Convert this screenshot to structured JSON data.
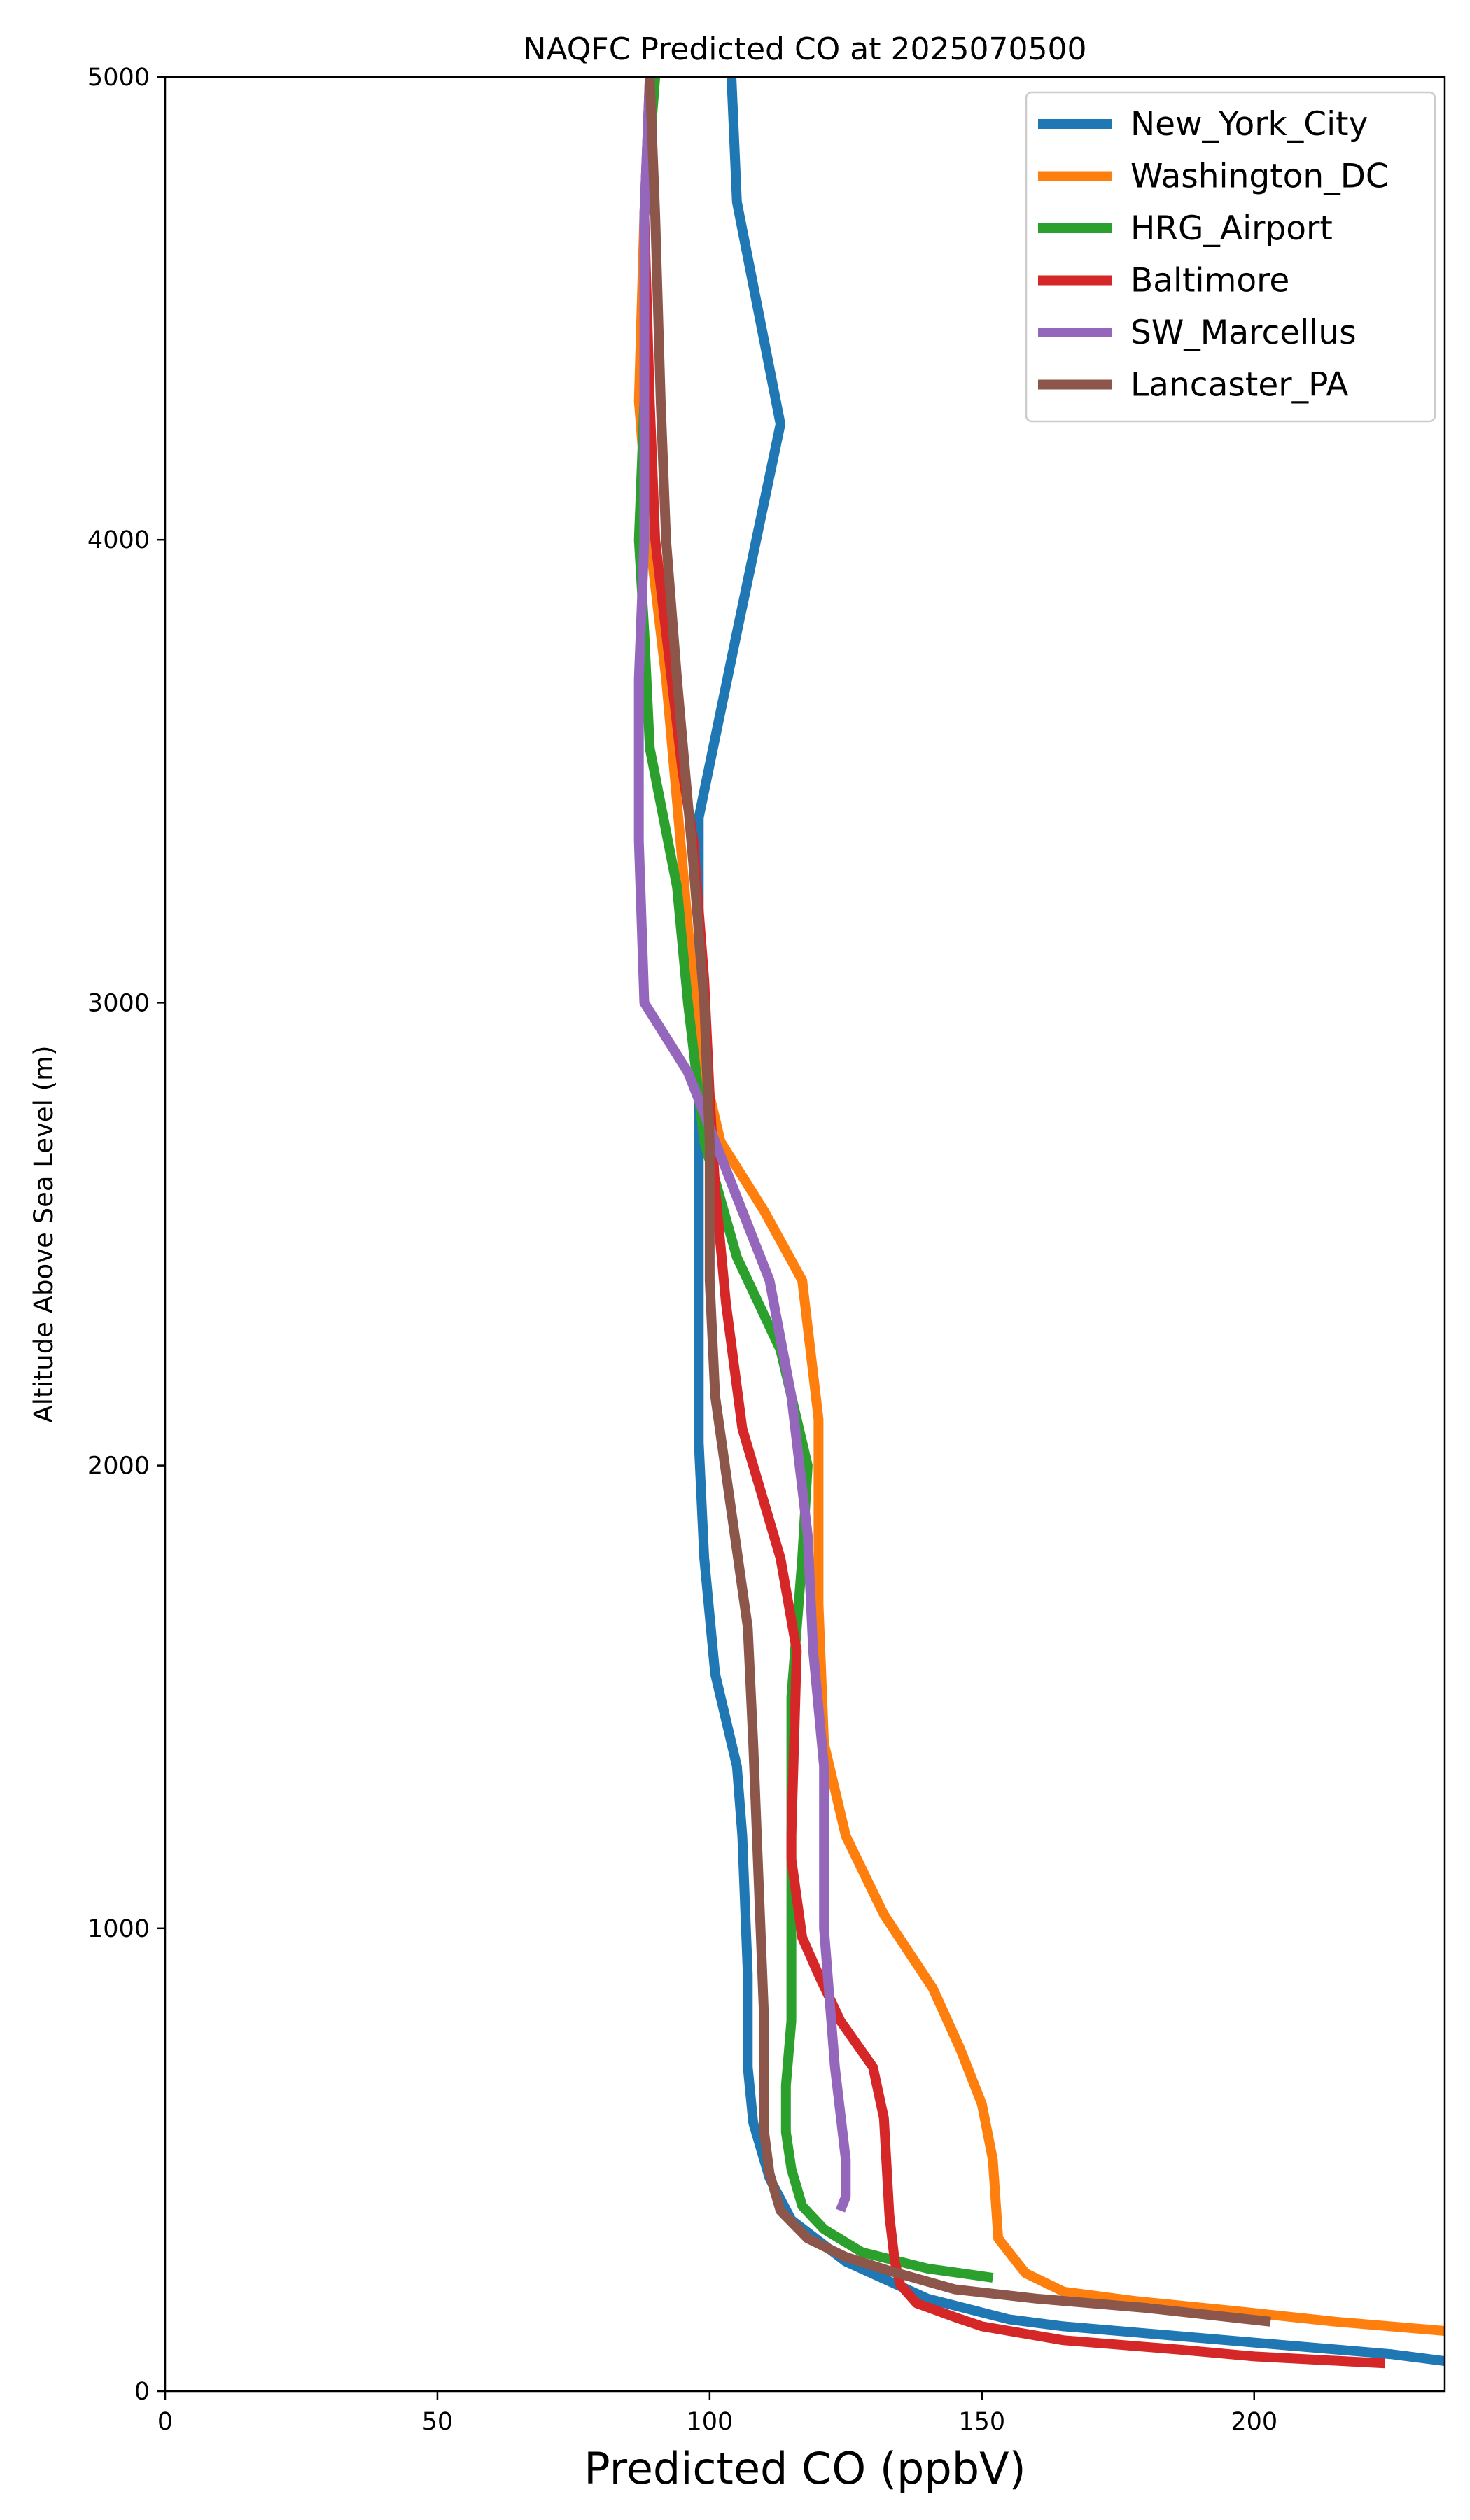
{
  "chart_data": {
    "type": "line",
    "title": "NAQFC Predicted CO at 2025070500",
    "xlabel": "Predicted CO (ppbV)",
    "ylabel": "Altitude Above Sea Level (m)",
    "xlim": [
      0,
      235
    ],
    "ylim": [
      0,
      5000
    ],
    "xticks": [
      0,
      50,
      100,
      150,
      200
    ],
    "yticks": [
      0,
      1000,
      2000,
      3000,
      4000,
      5000
    ],
    "grid": false,
    "legend_position": "top-right",
    "series": [
      {
        "name": "New_York_City",
        "color": "#1f77b4",
        "points": [
          [
            235,
            65
          ],
          [
            225,
            80
          ],
          [
            200,
            105
          ],
          [
            180,
            125
          ],
          [
            165,
            140
          ],
          [
            155,
            155
          ],
          [
            140,
            200
          ],
          [
            125,
            280
          ],
          [
            115,
            370
          ],
          [
            111,
            460
          ],
          [
            108,
            580
          ],
          [
            107,
            700
          ],
          [
            107,
            900
          ],
          [
            106,
            1200
          ],
          [
            105,
            1350
          ],
          [
            101,
            1550
          ],
          [
            99,
            1800
          ],
          [
            98,
            2050
          ],
          [
            98,
            2400
          ],
          [
            98,
            2800
          ],
          [
            98,
            3100
          ],
          [
            98,
            3400
          ],
          [
            105,
            3800
          ],
          [
            113,
            4250
          ],
          [
            105,
            4730
          ],
          [
            104,
            5000
          ]
        ]
      },
      {
        "name": "Washington_DC",
        "color": "#ff7f0e",
        "points": [
          [
            235,
            130
          ],
          [
            215,
            150
          ],
          [
            195,
            175
          ],
          [
            178,
            195
          ],
          [
            165,
            215
          ],
          [
            158,
            255
          ],
          [
            153,
            330
          ],
          [
            152,
            500
          ],
          [
            150,
            620
          ],
          [
            146,
            740
          ],
          [
            141,
            870
          ],
          [
            132,
            1030
          ],
          [
            125,
            1200
          ],
          [
            121,
            1400
          ],
          [
            120,
            1700
          ],
          [
            120,
            2100
          ],
          [
            117,
            2400
          ],
          [
            110,
            2550
          ],
          [
            102,
            2700
          ],
          [
            98,
            2900
          ],
          [
            95,
            3300
          ],
          [
            92,
            3700
          ],
          [
            89,
            4000
          ],
          [
            87,
            4300
          ],
          [
            88,
            4700
          ],
          [
            90,
            5000
          ]
        ]
      },
      {
        "name": "HRG_Airport",
        "color": "#2ca02c",
        "points": [
          [
            152,
            245
          ],
          [
            140,
            265
          ],
          [
            128,
            300
          ],
          [
            121,
            350
          ],
          [
            117,
            400
          ],
          [
            115,
            480
          ],
          [
            114,
            560
          ],
          [
            114,
            660
          ],
          [
            115,
            800
          ],
          [
            115,
            1000
          ],
          [
            115,
            1200
          ],
          [
            115,
            1500
          ],
          [
            117,
            1800
          ],
          [
            118,
            2000
          ],
          [
            113,
            2250
          ],
          [
            105,
            2450
          ],
          [
            99,
            2700
          ],
          [
            96,
            3000
          ],
          [
            94,
            3250
          ],
          [
            89,
            3550
          ],
          [
            88,
            3800
          ],
          [
            87,
            4000
          ],
          [
            88,
            4300
          ],
          [
            88,
            4700
          ],
          [
            90,
            5000
          ]
        ]
      },
      {
        "name": "Baltimore",
        "color": "#d62728",
        "points": [
          [
            224,
            60
          ],
          [
            200,
            75
          ],
          [
            186,
            90
          ],
          [
            165,
            110
          ],
          [
            150,
            140
          ],
          [
            145,
            160
          ],
          [
            138,
            190
          ],
          [
            135,
            230
          ],
          [
            134,
            280
          ],
          [
            133,
            380
          ],
          [
            132,
            590
          ],
          [
            130,
            700
          ],
          [
            124,
            800
          ],
          [
            120,
            900
          ],
          [
            117,
            980
          ],
          [
            115,
            1150
          ],
          [
            115,
            1200
          ],
          [
            116,
            1600
          ],
          [
            113,
            1800
          ],
          [
            106,
            2080
          ],
          [
            103,
            2350
          ],
          [
            101,
            2600
          ],
          [
            100,
            2800
          ],
          [
            99,
            3050
          ],
          [
            97,
            3350
          ],
          [
            95,
            3500
          ],
          [
            92,
            3800
          ],
          [
            90,
            4000
          ],
          [
            89,
            4300
          ],
          [
            88,
            4700
          ],
          [
            89,
            5000
          ]
        ]
      },
      {
        "name": "SW_Marcellus",
        "color": "#9467bd",
        "points": [
          [
            124,
            390
          ],
          [
            125,
            420
          ],
          [
            125,
            500
          ],
          [
            124,
            600
          ],
          [
            123,
            700
          ],
          [
            122,
            850
          ],
          [
            121,
            1000
          ],
          [
            121,
            1150
          ],
          [
            121,
            1350
          ],
          [
            119,
            1600
          ],
          [
            118,
            1850
          ],
          [
            115,
            2150
          ],
          [
            111,
            2400
          ],
          [
            106,
            2550
          ],
          [
            101,
            2700
          ],
          [
            96,
            2850
          ],
          [
            88,
            3000
          ],
          [
            87,
            3350
          ],
          [
            87,
            3700
          ],
          [
            88,
            4000
          ],
          [
            88,
            4300
          ],
          [
            88,
            4700
          ],
          [
            89,
            5000
          ]
        ]
      },
      {
        "name": "Lancaster_PA",
        "color": "#8c564b",
        "points": [
          [
            203,
            150
          ],
          [
            180,
            180
          ],
          [
            160,
            200
          ],
          [
            145,
            220
          ],
          [
            133,
            260
          ],
          [
            125,
            290
          ],
          [
            118,
            330
          ],
          [
            113,
            390
          ],
          [
            111,
            470
          ],
          [
            110,
            560
          ],
          [
            110,
            800
          ],
          [
            109,
            1100
          ],
          [
            108,
            1400
          ],
          [
            107,
            1650
          ],
          [
            104,
            1900
          ],
          [
            101,
            2150
          ],
          [
            100,
            2400
          ],
          [
            100,
            2700
          ],
          [
            99,
            3000
          ],
          [
            97,
            3300
          ],
          [
            94,
            3700
          ],
          [
            92,
            4000
          ],
          [
            91,
            4300
          ],
          [
            90,
            4700
          ],
          [
            89,
            5000
          ]
        ]
      }
    ]
  }
}
